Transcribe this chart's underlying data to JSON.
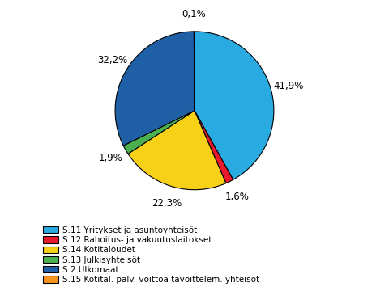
{
  "labels": [
    "S.11 Yritykset ja asuntoyhteisöt",
    "S.12 Rahoitus- ja vakuutuslaitokset",
    "S.14 Kotitaloudet",
    "S.13 Julkisyhteisöt",
    "S.2 Ulkomaat",
    "S.15 Kotital. palv. voittoa tavoittelem. yhteisöt"
  ],
  "values": [
    41.9,
    1.6,
    22.3,
    1.9,
    32.2,
    0.1
  ],
  "colors": [
    "#29ABE2",
    "#E8192C",
    "#F7D117",
    "#4CAF50",
    "#1F5FA6",
    "#F7941D"
  ],
  "pct_labels": [
    "41,9%",
    "1,6%",
    "22,3%",
    "1,9%",
    "32,2%",
    "0,1%"
  ],
  "background_color": "#ffffff",
  "edge_color": "#000000",
  "startangle": 90,
  "legend_fontsize": 7.5,
  "pct_fontsize": 8.5
}
